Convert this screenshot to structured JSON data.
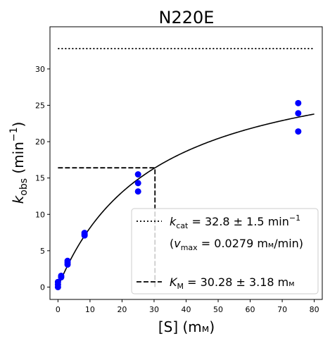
{
  "chart_data": {
    "type": "scatter",
    "title": "N220E",
    "xlabel_base": "[S] (m",
    "xlabel_unit": "м",
    "xlabel_close": ")",
    "ylabel_main": "k",
    "ylabel_sub": "obs",
    "ylabel_unit_open": " (min",
    "ylabel_unit_sup": "−1",
    "ylabel_unit_close": ")",
    "xlim": [
      -2.5,
      82.5
    ],
    "ylim": [
      -1.7,
      35.8
    ],
    "xticks": [
      0,
      10,
      20,
      30,
      40,
      50,
      60,
      70,
      80
    ],
    "yticks": [
      0,
      5,
      10,
      15,
      20,
      25,
      30
    ],
    "grid": false,
    "legend_position": "bottom-right",
    "colors": {
      "points": "#0000ff",
      "fit": "#000000",
      "kcat_line": "#000000",
      "km_line": "#000000"
    },
    "points": [
      {
        "x": 0,
        "y": 0.0
      },
      {
        "x": 0,
        "y": 0.35
      },
      {
        "x": 0,
        "y": 0.7
      },
      {
        "x": 1,
        "y": 1.35
      },
      {
        "x": 1,
        "y": 1.55
      },
      {
        "x": 3,
        "y": 3.1
      },
      {
        "x": 3,
        "y": 3.35
      },
      {
        "x": 3,
        "y": 3.6
      },
      {
        "x": 8.3,
        "y": 7.1
      },
      {
        "x": 8.3,
        "y": 7.25
      },
      {
        "x": 8.3,
        "y": 7.45
      },
      {
        "x": 25,
        "y": 13.15
      },
      {
        "x": 25,
        "y": 14.3
      },
      {
        "x": 25,
        "y": 15.5
      },
      {
        "x": 75,
        "y": 21.4
      },
      {
        "x": 75,
        "y": 23.9
      },
      {
        "x": 75,
        "y": 25.3
      }
    ],
    "fit": {
      "model": "michaelis-menten",
      "kcat": 32.8,
      "km": 30.28,
      "x_range": [
        0,
        80
      ]
    },
    "kcat_line": {
      "y": 32.8,
      "x_range": [
        0,
        80
      ]
    },
    "km_line": {
      "x": 30.28,
      "y": 16.4,
      "x_start": 0,
      "y_start": 0
    },
    "legend": [
      {
        "style": "dotted",
        "label_sym": "k",
        "label_sub": "cat",
        "label_value": " = 32.8 ± 1.5 min",
        "label_sup": "−1",
        "label_line2_open": "(",
        "label_line2_sym": "v",
        "label_line2_sub": "max",
        "label_line2_value": " = 0.0279 m",
        "label_line2_unit": "м",
        "label_line2_close": "/min)"
      },
      {
        "style": "dashed",
        "label_sym": "K",
        "label_sub": "M",
        "label_value": " = 30.28 ± 3.18 m",
        "label_unit": "м"
      }
    ]
  }
}
